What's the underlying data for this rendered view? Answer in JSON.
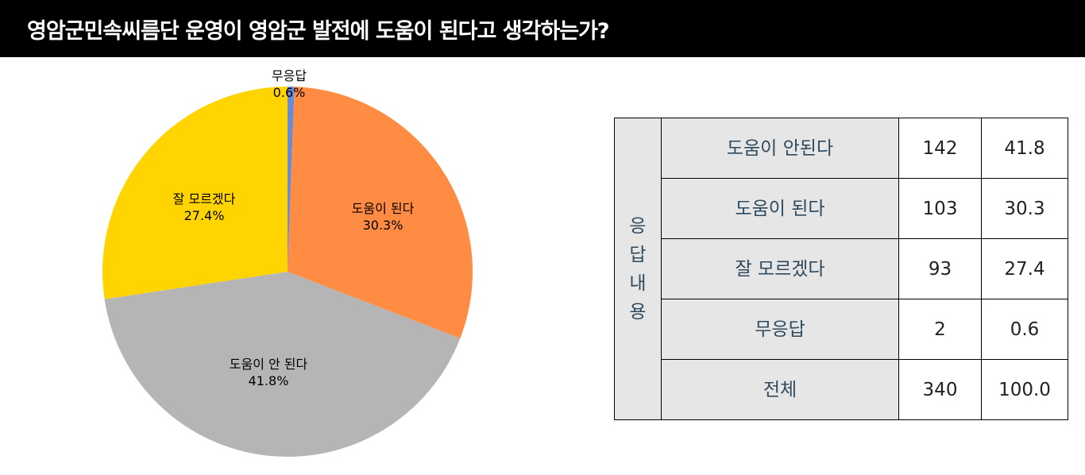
{
  "title": "영암군민속씨름단 운영이 영암군 발전에 도움이 된다고 생각하는가?",
  "chart_data": {
    "type": "pie",
    "slices": [
      {
        "label": "무응답",
        "value": 0.6,
        "display": "0.6%",
        "color": "#6b8ad4"
      },
      {
        "label": "도움이 된다",
        "value": 30.3,
        "display": "30.3%",
        "color": "#ff8c42"
      },
      {
        "label": "도움이 안 된다",
        "value": 41.8,
        "display": "41.8%",
        "color": "#b5b5b5"
      },
      {
        "label": "잘 모르겠다",
        "value": 27.4,
        "display": "27.4%",
        "color": "#ffd400"
      }
    ],
    "start_angle_deg": 0,
    "direction": "clockwise"
  },
  "table": {
    "header": "응답내용",
    "rows": [
      {
        "label": "도움이 안된다",
        "count": "142",
        "percent": "41.8"
      },
      {
        "label": "도움이 된다",
        "count": "103",
        "percent": "30.3"
      },
      {
        "label": "잘 모르겠다",
        "count": "93",
        "percent": "27.4"
      },
      {
        "label": "무응답",
        "count": "2",
        "percent": "0.6"
      },
      {
        "label": "전체",
        "count": "340",
        "percent": "100.0"
      }
    ]
  }
}
